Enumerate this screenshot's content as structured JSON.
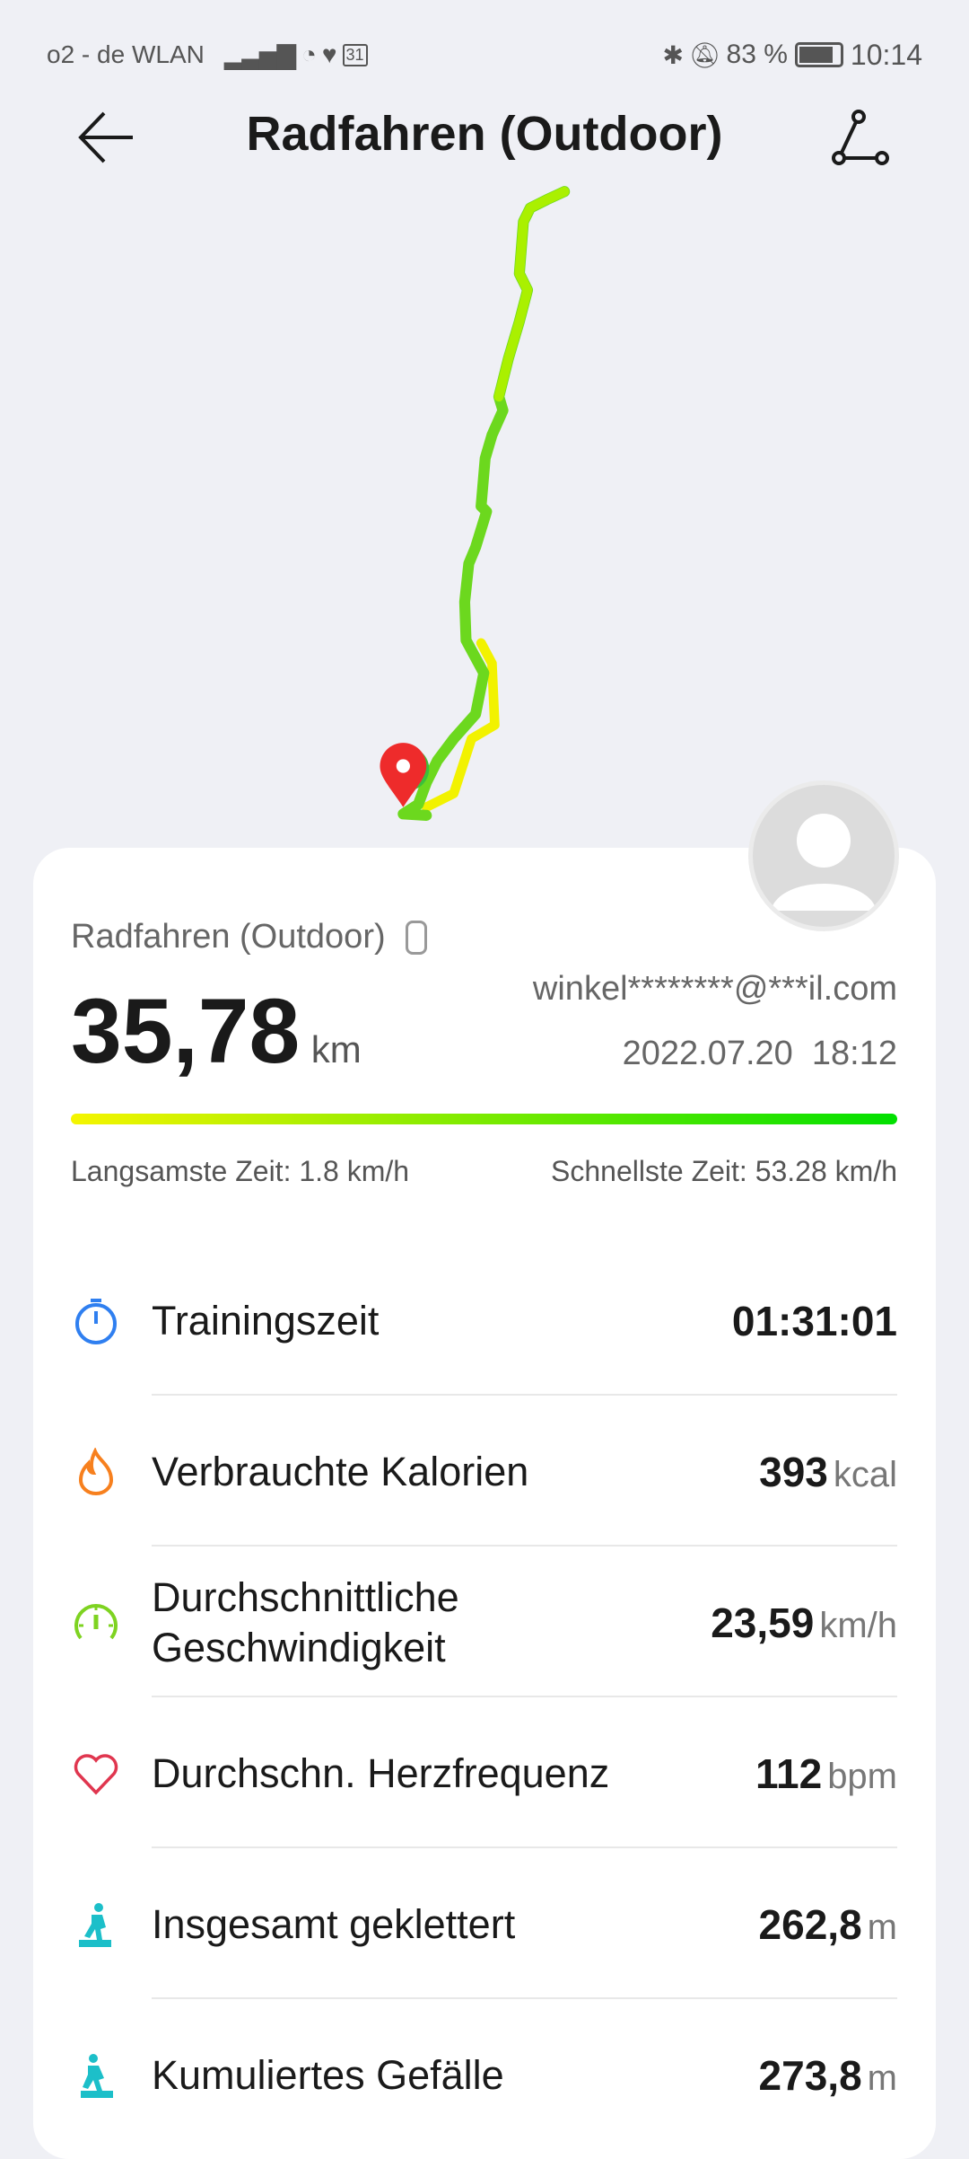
{
  "status_bar": {
    "carrier": "o2 - de WLAN",
    "battery": "83 %",
    "time": "10:14",
    "calendar_day": "31"
  },
  "header": {
    "title": "Radfahren (Outdoor)"
  },
  "summary": {
    "activity": "Radfahren (Outdoor)",
    "distance": "35,78",
    "distance_unit": "km",
    "account": "winkel********@***il.com",
    "date": "2022.07.20",
    "time": "18:12",
    "slowest": "Langsamste Zeit: 1.8 km/h",
    "fastest": "Schnellste Zeit: 53.28 km/h",
    "gradient_colors": [
      "#f5f500",
      "#00e000"
    ]
  },
  "metrics": [
    {
      "label": "Trainingszeit",
      "value": "01:31:01",
      "unit": "",
      "icon": "stopwatch-icon",
      "color": "#2f7ff0"
    },
    {
      "label": "Verbrauchte Kalorien",
      "value": "393",
      "unit": "kcal",
      "icon": "flame-icon",
      "color": "#f7801e"
    },
    {
      "label": "Durchschnittliche Geschwindigkeit",
      "value": "23,59",
      "unit": "km/h",
      "icon": "speedometer-icon",
      "color": "#7ed321"
    },
    {
      "label": "Durchschn. Herzfrequenz",
      "value": "112",
      "unit": "bpm",
      "icon": "heart-icon",
      "color": "#e0364f"
    },
    {
      "label": "Insgesamt geklettert",
      "value": "262,8",
      "unit": "m",
      "icon": "climber-icon",
      "color": "#1cbfc9"
    },
    {
      "label": "Kumuliertes Gefälle",
      "value": "273,8",
      "unit": "m",
      "icon": "descend-icon",
      "color": "#1cbfc9"
    }
  ]
}
